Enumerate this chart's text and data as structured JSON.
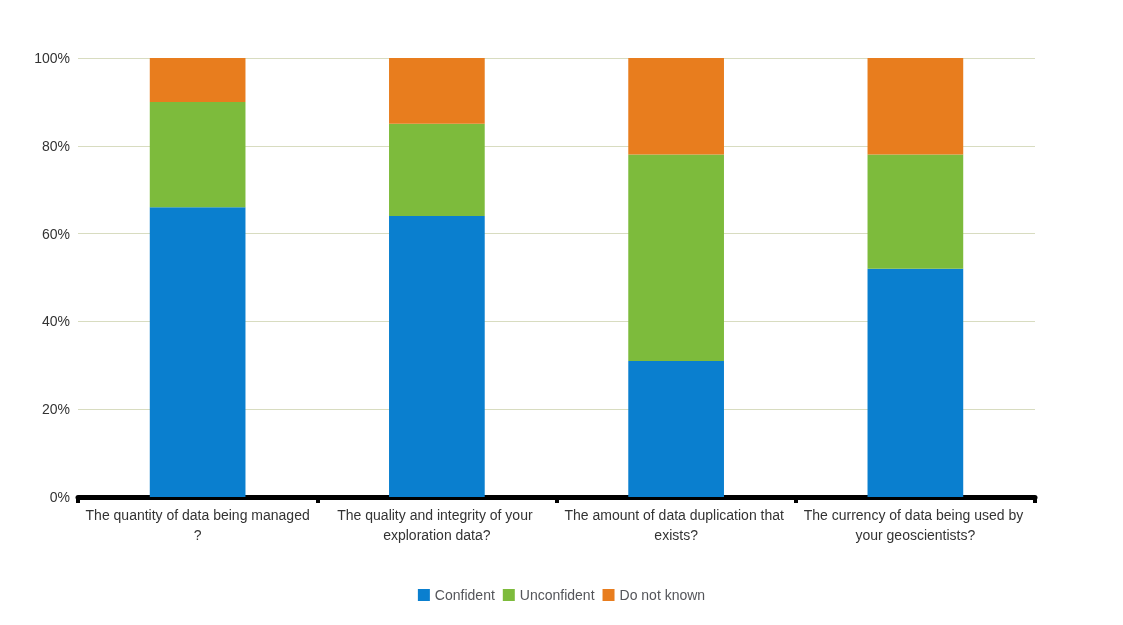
{
  "chart_data": {
    "type": "bar",
    "stacked": true,
    "categories": [
      "The quantity of data being managed?",
      "The quality and integrity of your exploration data?",
      "The amount of data duplication that exists?",
      "The currency of data being used by your geoscientists?"
    ],
    "series": [
      {
        "name": "Confident",
        "color": "#0a7fcf",
        "values": [
          66,
          64,
          31,
          52
        ]
      },
      {
        "name": "Unconfident",
        "color": "#7dbb3c",
        "values": [
          24,
          21,
          47,
          26
        ]
      },
      {
        "name": "Do not known",
        "color": "#e87d1e",
        "values": [
          10,
          15,
          22,
          22
        ]
      }
    ],
    "ylim": [
      0,
      100
    ],
    "yticks": [
      {
        "value": 0,
        "label": "0%"
      },
      {
        "value": 20,
        "label": "20%"
      },
      {
        "value": 40,
        "label": "40%"
      },
      {
        "value": 60,
        "label": "60%"
      },
      {
        "value": 80,
        "label": "80%"
      },
      {
        "value": 100,
        "label": "100%"
      }
    ],
    "grid": "y",
    "legend": "bottom"
  }
}
